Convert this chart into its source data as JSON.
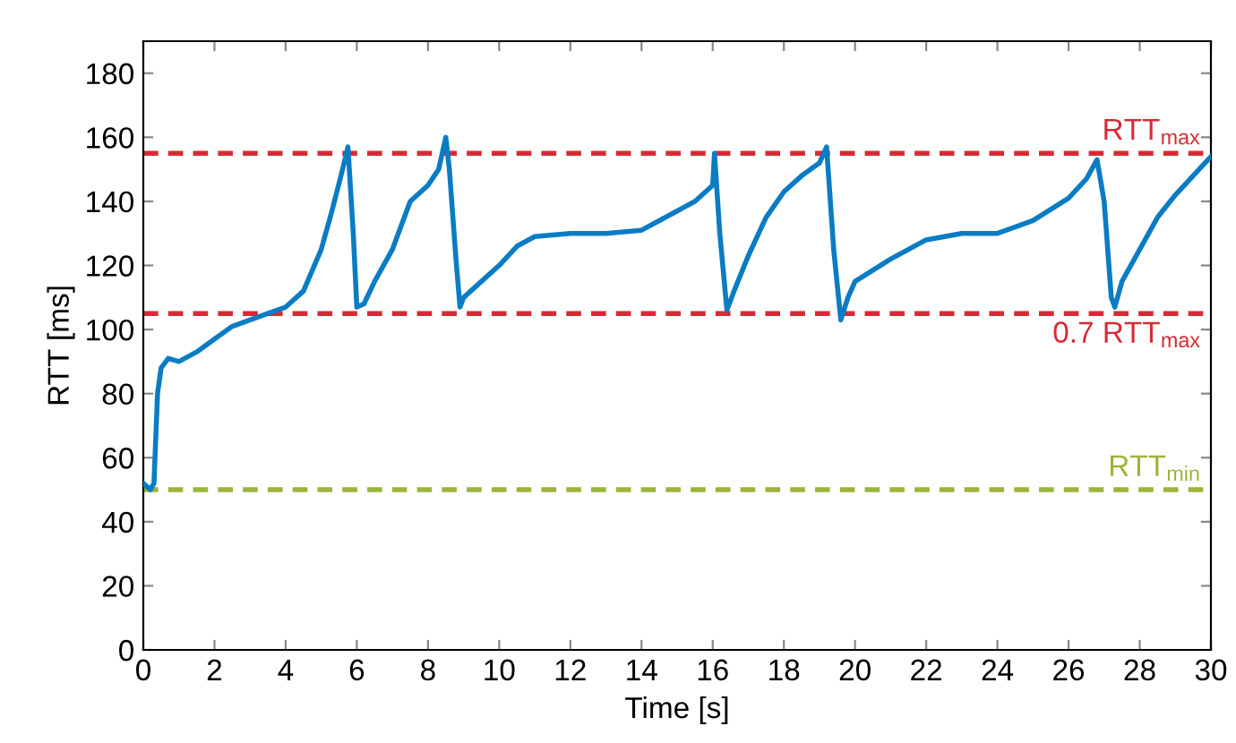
{
  "chart_data": {
    "type": "line",
    "xlabel": "Time [s]",
    "ylabel": "RTT [ms]",
    "xlim": [
      0,
      30
    ],
    "ylim": [
      0,
      190
    ],
    "xticks": [
      0,
      2,
      4,
      6,
      8,
      10,
      12,
      14,
      16,
      18,
      20,
      22,
      24,
      26,
      28,
      30
    ],
    "yticks": [
      0,
      20,
      40,
      60,
      80,
      100,
      120,
      140,
      160,
      180
    ],
    "grid": false,
    "marker": "none",
    "line_style": "solid",
    "series": [
      {
        "color": "#0a7cc4",
        "x": [
          0,
          0.2,
          0.3,
          0.4,
          0.5,
          0.7,
          1,
          1.5,
          2,
          2.5,
          3,
          3.5,
          4,
          4.5,
          5,
          5.3,
          5.6,
          5.75,
          5.9,
          6.0,
          6.2,
          6.5,
          7,
          7.5,
          8,
          8.3,
          8.5,
          8.6,
          8.8,
          8.9,
          9.0,
          9.5,
          10,
          10.5,
          11,
          12,
          13,
          14,
          15,
          15.5,
          16,
          16.05,
          16.2,
          16.4,
          16.6,
          17,
          17.5,
          18,
          18.5,
          19,
          19.2,
          19.4,
          19.6,
          19.8,
          20,
          21,
          22,
          23,
          24,
          25,
          26,
          26.5,
          26.8,
          27,
          27.2,
          27.3,
          27.5,
          28,
          28.5,
          29,
          29.5,
          30
        ],
        "values": [
          52,
          50,
          52,
          80,
          88,
          91,
          90,
          93,
          97,
          101,
          103,
          105,
          107,
          112,
          125,
          137,
          150,
          157,
          130,
          107,
          108,
          115,
          125,
          140,
          145,
          150,
          160,
          150,
          120,
          107,
          110,
          115,
          120,
          126,
          129,
          130,
          130,
          131,
          137,
          140,
          145,
          155,
          130,
          106,
          112,
          123,
          135,
          143,
          148,
          152,
          157,
          125,
          103,
          110,
          115,
          122,
          128,
          130,
          130,
          134,
          141,
          147,
          153,
          140,
          110,
          107,
          115,
          125,
          135,
          142,
          148,
          154
        ]
      }
    ],
    "ref_lines": [
      {
        "axis": "y",
        "value": 155,
        "label": "RTT$_{max}$",
        "color": "#d62b35",
        "line_style": "dashed"
      },
      {
        "axis": "y",
        "value": 105,
        "label": "0.7 RTT$_{max}$",
        "color": "#d62b35",
        "line_style": "dashed"
      },
      {
        "axis": "y",
        "value": 50,
        "label": "RTT$_{min}$",
        "color": "#9bb53a",
        "line_style": "dashed"
      }
    ]
  }
}
